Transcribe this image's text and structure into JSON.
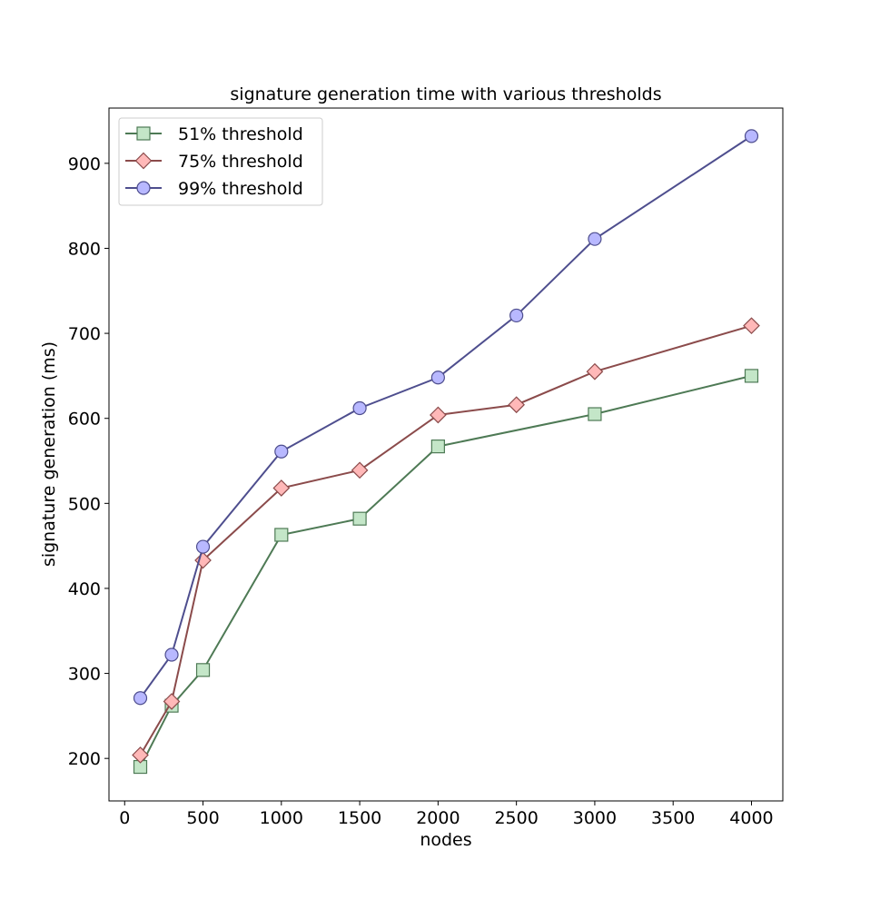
{
  "chart_data": {
    "type": "line",
    "title": "signature generation time with various thresholds",
    "xlabel": "nodes",
    "ylabel": "signature generation (ms)",
    "xlim": [
      -100,
      4200
    ],
    "ylim": [
      150,
      965
    ],
    "xticks": [
      0,
      500,
      1000,
      1500,
      2000,
      2500,
      3000,
      3500,
      4000
    ],
    "yticks": [
      200,
      300,
      400,
      500,
      600,
      700,
      800,
      900
    ],
    "grid": false,
    "legend_position": "top-left",
    "series": [
      {
        "name": "51% threshold",
        "marker": "square",
        "line_color": "#4e7a55",
        "fill_color": "#c4e6c8",
        "x": [
          100,
          300,
          500,
          1000,
          1500,
          2000,
          3000,
          4000
        ],
        "y": [
          190,
          262,
          304,
          463,
          482,
          567,
          605,
          650
        ]
      },
      {
        "name": "75% threshold",
        "marker": "diamond",
        "line_color": "#8b4b4b",
        "fill_color": "#ffb8b8",
        "x": [
          100,
          300,
          500,
          1000,
          1500,
          2000,
          2500,
          3000,
          4000
        ],
        "y": [
          204,
          267,
          433,
          518,
          539,
          604,
          616,
          655,
          709
        ]
      },
      {
        "name": "99% threshold",
        "marker": "circle",
        "line_color": "#4e4e8e",
        "fill_color": "#b8b8ff",
        "x": [
          100,
          300,
          500,
          1000,
          1500,
          2000,
          2500,
          3000,
          4000
        ],
        "y": [
          271,
          322,
          449,
          561,
          612,
          648,
          721,
          811,
          932
        ]
      }
    ]
  }
}
